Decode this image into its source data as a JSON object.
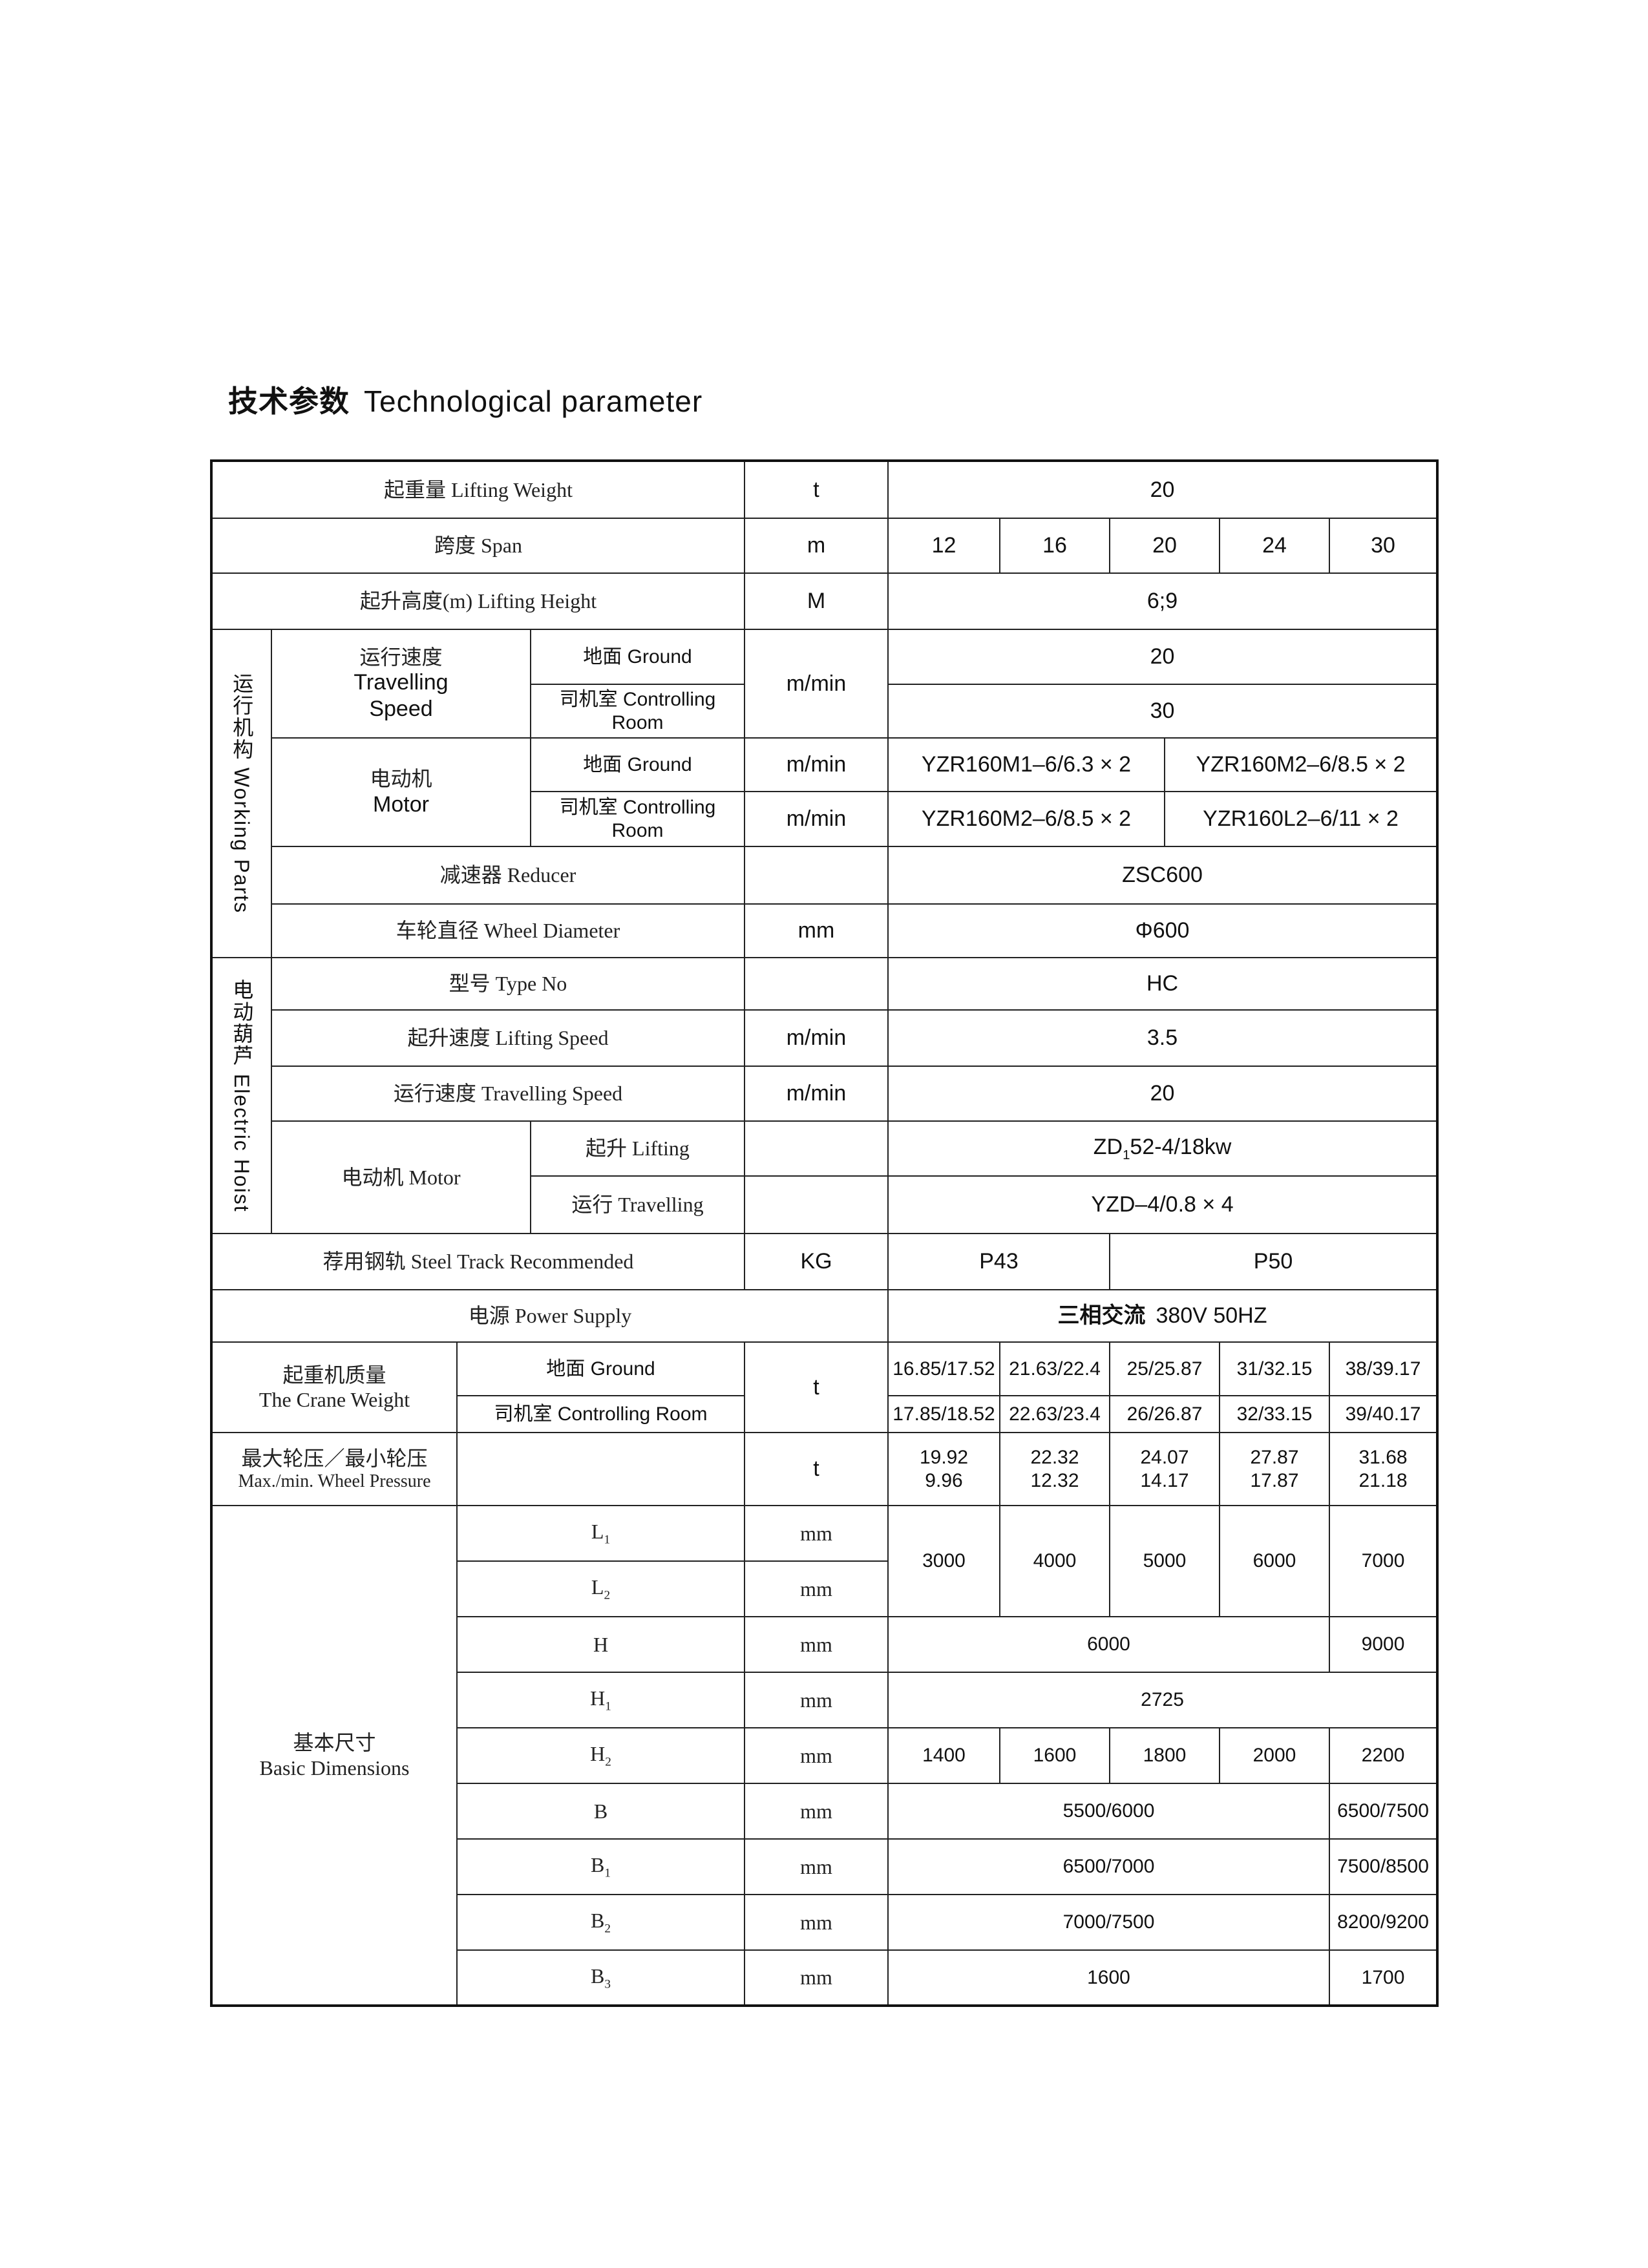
{
  "title": {
    "cn": "技术参数",
    "en": "Technological  parameter"
  },
  "rows": {
    "lifting_weight": {
      "label": "起重量  Lifting Weight",
      "unit": "t",
      "value": "20"
    },
    "span": {
      "label": "跨度    Span",
      "unit": "m",
      "values": [
        "12",
        "16",
        "20",
        "24",
        "30"
      ]
    },
    "lifting_height": {
      "label": "起升高度(m) Lifting Height",
      "unit": "M",
      "value": "6;9"
    },
    "working_parts": {
      "group_label": "运行机构 Working Parts",
      "travelling_speed": {
        "label_cn": "运行速度",
        "label_en1": "Travelling",
        "label_en2": "Speed",
        "unit": "m/min",
        "ground": {
          "label": "地面 Ground",
          "value": "20"
        },
        "controlling": {
          "label": "司机室 Controlling Room",
          "value": "30"
        }
      },
      "motor": {
        "label_cn": "电动机",
        "label_en": "Motor",
        "ground": {
          "label": "地面 Ground",
          "unit": "m/min",
          "values": [
            "YZR160M1–6/6.3 × 2",
            "YZR160M2–6/8.5 × 2"
          ]
        },
        "controlling": {
          "label": "司机室 Controlling Room",
          "unit": "m/min",
          "values": [
            "YZR160M2–6/8.5 × 2",
            "YZR160L2–6/11 × 2"
          ]
        }
      },
      "reducer": {
        "label": "减速器  Reducer",
        "unit": "",
        "value": "ZSC600"
      },
      "wheel_diameter": {
        "label": "车轮直径 Wheel Diameter",
        "unit": "mm",
        "value": "Φ600"
      }
    },
    "electric_hoist": {
      "group_label": "电动葫芦 Electric Hoist",
      "type": {
        "label": "型号 Type  No",
        "unit": "",
        "value": "HC"
      },
      "lifting_speed": {
        "label": "起升速度 Lifting  Speed",
        "unit": "m/min",
        "value": "3.5"
      },
      "travelling_speed": {
        "label": "运行速度  Travelling  Speed",
        "unit": "m/min",
        "value": "20"
      },
      "motor": {
        "label": "电动机  Motor",
        "lifting": {
          "label": "起升  Lifting",
          "value_pre": "ZD",
          "value_sub": "1",
          "value_post": "52-4/18kw"
        },
        "travelling": {
          "label": "运行  Travelling",
          "value": "YZD–4/0.8 × 4"
        }
      }
    },
    "steel_track": {
      "label": "荐用钢轨  Steel  Track  Recommended",
      "unit": "KG",
      "values": [
        "P43",
        "P50"
      ]
    },
    "power_supply": {
      "label": "电源  Power  Supply",
      "value_cn": "三相交流",
      "value": "380V    50HZ"
    },
    "crane_weight": {
      "label_cn": "起重机质量",
      "label_en": "The  Crane  Weight",
      "unit": "t",
      "ground": {
        "label": "地面 Ground",
        "values": [
          "16.85/17.52",
          "21.63/22.4",
          "25/25.87",
          "31/32.15",
          "38/39.17"
        ]
      },
      "controlling": {
        "label": "司机室 Controlling Room",
        "values": [
          "17.85/18.52",
          "22.63/23.4",
          "26/26.87",
          "32/33.15",
          "39/40.17"
        ]
      }
    },
    "wheel_pressure": {
      "label_cn": "最大轮压／最小轮压",
      "label_en": "Max./min.  Wheel  Pressure",
      "unit": "t",
      "max": [
        "19.92",
        "22.32",
        "24.07",
        "27.87",
        "31.68"
      ],
      "min": [
        "9.96",
        "12.32",
        "14.17",
        "17.87",
        "21.18"
      ]
    },
    "basic_dimensions": {
      "label_cn": "基本尺寸",
      "label_en": "Basic  Dimensions",
      "unit": "mm",
      "L1": {
        "sym": "L",
        "sub": "1"
      },
      "L2": {
        "sym": "L",
        "sub": "2"
      },
      "L_values": [
        "3000",
        "4000",
        "5000",
        "6000",
        "7000"
      ],
      "H": {
        "sym": "H",
        "values": [
          "6000",
          "9000"
        ]
      },
      "H1": {
        "sym": "H",
        "sub": "1",
        "value": "2725"
      },
      "H2": {
        "sym": "H",
        "sub": "2",
        "values": [
          "1400",
          "1600",
          "1800",
          "2000",
          "2200"
        ]
      },
      "B": {
        "sym": "B",
        "values": [
          "5500/6000",
          "6500/7500"
        ]
      },
      "B1": {
        "sym": "B",
        "sub": "1",
        "values": [
          "6500/7000",
          "7500/8500"
        ]
      },
      "B2": {
        "sym": "B",
        "sub": "2",
        "values": [
          "7000/7500",
          "8200/9200"
        ]
      },
      "B3": {
        "sym": "B",
        "sub": "3",
        "values": [
          "1600",
          "1700"
        ]
      }
    }
  }
}
